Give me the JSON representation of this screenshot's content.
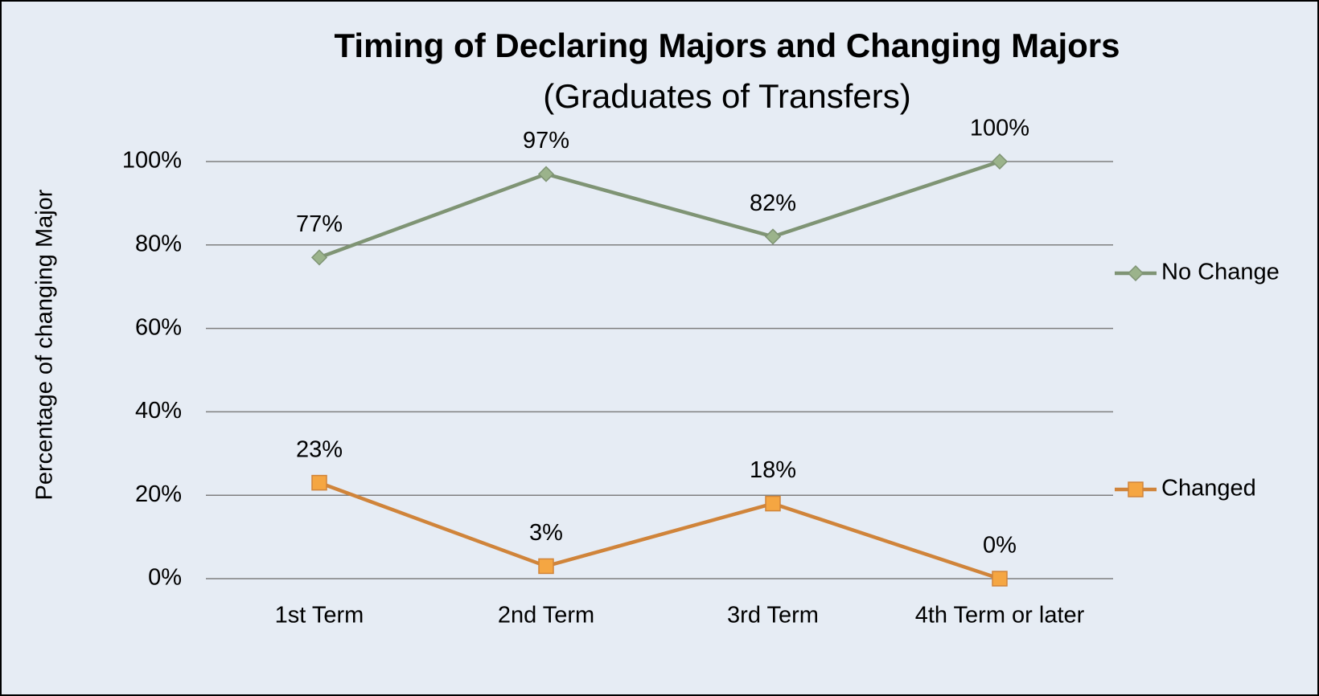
{
  "chart_data": {
    "type": "line",
    "title": "Timing of Declaring Majors and Changing Majors",
    "subtitle": "(Graduates of Transfers)",
    "y_label": "Percentage of changing Major",
    "categories": [
      "1st Term",
      "2nd Term",
      "3rd Term",
      "4th Term or later"
    ],
    "series": [
      {
        "name": "No Change",
        "color": "#7f9474",
        "marker_color": "#9bb38b",
        "marker": "diamond",
        "values": [
          77,
          97,
          82,
          100
        ],
        "value_labels": [
          "77%",
          "97%",
          "82%",
          "100%"
        ]
      },
      {
        "name": "Changed",
        "color": "#d0843a",
        "marker_color": "#f5a642",
        "marker": "square",
        "values": [
          23,
          3,
          18,
          0
        ],
        "value_labels": [
          "23%",
          "3%",
          "18%",
          "0%"
        ]
      }
    ],
    "ylim": [
      0,
      100
    ],
    "yticks": [
      {
        "value": 0,
        "label": "0%"
      },
      {
        "value": 20,
        "label": "20%"
      },
      {
        "value": 40,
        "label": "40%"
      },
      {
        "value": 60,
        "label": "60%"
      },
      {
        "value": 80,
        "label": "80%"
      },
      {
        "value": 100,
        "label": "100%"
      }
    ],
    "grid": true,
    "legend": "right"
  }
}
